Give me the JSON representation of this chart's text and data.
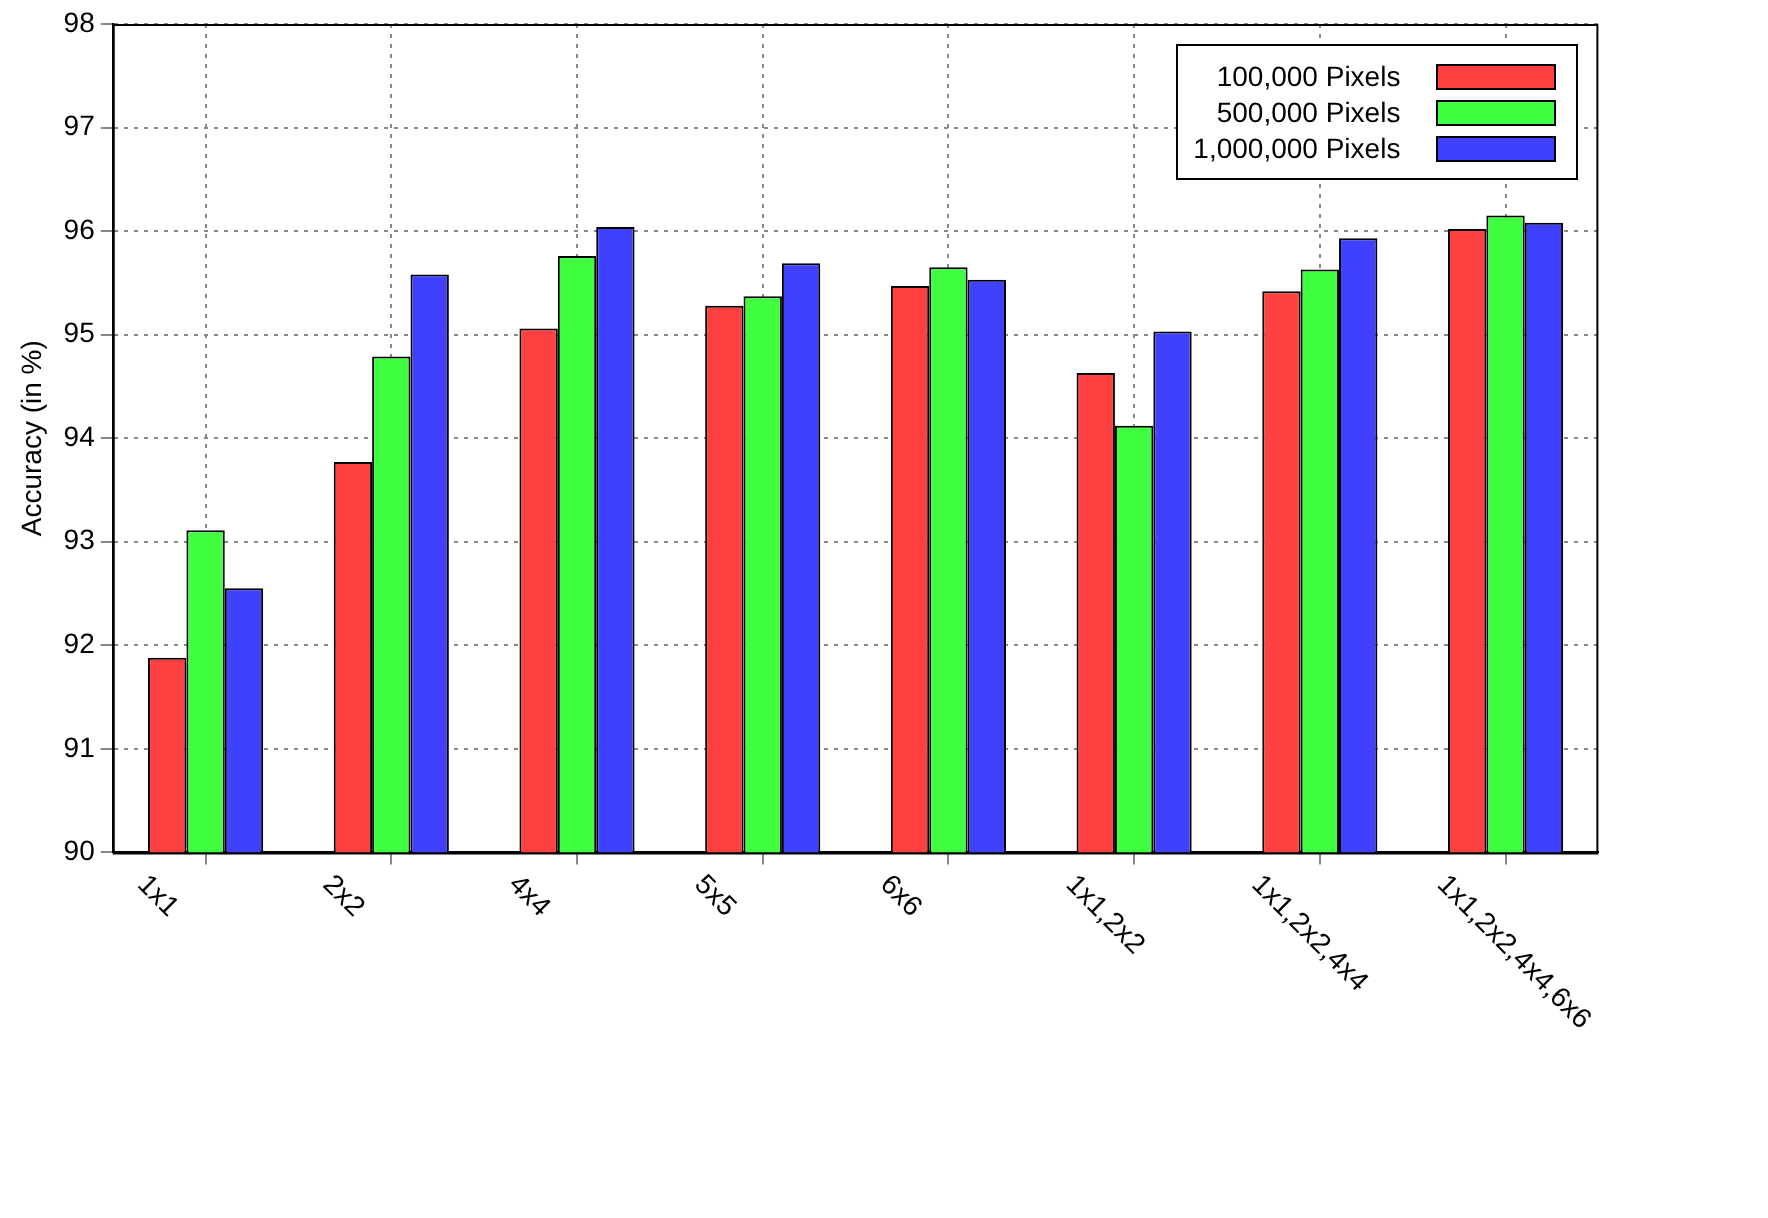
{
  "chart_data": {
    "type": "bar",
    "ylabel": "Accuracy (in %)",
    "categories": [
      "1x1",
      "2x2",
      "4x4",
      "5x5",
      "6x6",
      "1x1,2x2",
      "1x1,2x2,4x4",
      "1x1,2x2,4x4,6x6"
    ],
    "series": [
      {
        "name": "100,000 Pixels",
        "color": "#ff4040",
        "values": [
          91.88,
          93.77,
          95.06,
          95.28,
          95.47,
          94.63,
          95.42,
          96.02
        ]
      },
      {
        "name": "500,000 Pixels",
        "color": "#40ff40",
        "values": [
          93.11,
          94.79,
          95.76,
          95.37,
          95.65,
          94.12,
          95.63,
          96.15
        ]
      },
      {
        "name": "1,000,000 Pixels",
        "color": "#4040ff",
        "values": [
          92.55,
          95.58,
          96.04,
          95.69,
          95.53,
          95.03,
          95.93,
          96.08
        ]
      }
    ],
    "ylim": [
      90,
      98
    ],
    "yticks": [
      90,
      91,
      92,
      93,
      94,
      95,
      96,
      97,
      98
    ],
    "grid": true,
    "legend": "top right"
  }
}
